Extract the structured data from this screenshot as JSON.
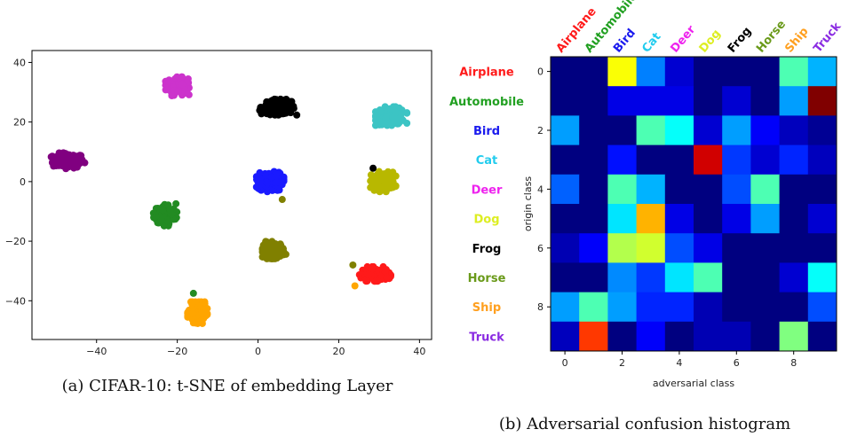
{
  "chart_data": [
    {
      "type": "scatter",
      "caption": "(a) CIFAR-10: t-SNE of embedding Layer",
      "title": "",
      "xlabel": "",
      "ylabel": "",
      "xlim": [
        -56,
        43
      ],
      "ylim": [
        -53,
        44
      ],
      "xticks": [
        -40,
        -20,
        0,
        20,
        40
      ],
      "yticks": [
        -40,
        -20,
        0,
        20,
        40
      ],
      "grid": false,
      "clusters": [
        {
          "color": "#800080",
          "center": [
            -47,
            7
          ],
          "spread": [
            3.5,
            2.2
          ]
        },
        {
          "color": "#cc33cc",
          "center": [
            -20,
            32
          ],
          "spread": [
            2.4,
            2.6
          ]
        },
        {
          "color": "#000000",
          "center": [
            5,
            25
          ],
          "spread": [
            3.8,
            2.2
          ]
        },
        {
          "color": "#3cc4c4",
          "center": [
            33,
            22
          ],
          "spread": [
            3.2,
            2.6
          ]
        },
        {
          "color": "#228b22",
          "center": [
            -23,
            -11
          ],
          "spread": [
            2.4,
            3.2
          ]
        },
        {
          "color": "#1a1aff",
          "center": [
            3,
            0
          ],
          "spread": [
            2.8,
            2.8
          ]
        },
        {
          "color": "#b8b800",
          "center": [
            31,
            0
          ],
          "spread": [
            2.6,
            2.8
          ]
        },
        {
          "color": "#808000",
          "center": [
            4,
            -23
          ],
          "spread": [
            2.4,
            2.4
          ]
        },
        {
          "color": "#ff1a1a",
          "center": [
            29,
            -31
          ],
          "spread": [
            3.2,
            2.0
          ]
        },
        {
          "color": "#ffa500",
          "center": [
            -15,
            -44
          ],
          "spread": [
            2.0,
            3.0
          ]
        }
      ],
      "outliers": [
        {
          "x": 28.5,
          "y": 4.5,
          "color": "#000000"
        },
        {
          "x": 6,
          "y": -6,
          "color": "#808000"
        },
        {
          "x": 23.5,
          "y": -28,
          "color": "#808000"
        },
        {
          "x": 24,
          "y": -35,
          "color": "#ffa500"
        },
        {
          "x": -16,
          "y": -37.5,
          "color": "#228b22"
        }
      ]
    },
    {
      "type": "heatmap",
      "caption": "(b) Adversarial confusion histogram",
      "xlabel": "adversarial class",
      "ylabel": "origin class",
      "xticks": [
        0,
        2,
        4,
        6,
        8
      ],
      "yticks": [
        0,
        2,
        4,
        6,
        8
      ],
      "classes": [
        {
          "name": "Airplane",
          "color": "#ff1a1a"
        },
        {
          "name": "Automobile",
          "color": "#22a022"
        },
        {
          "name": "Bird",
          "color": "#1a1aee"
        },
        {
          "name": "Cat",
          "color": "#22ccee"
        },
        {
          "name": "Deer",
          "color": "#ee22ee"
        },
        {
          "name": "Dog",
          "color": "#ddee22"
        },
        {
          "name": "Frog",
          "color": "#000000"
        },
        {
          "name": "Horse",
          "color": "#6a9a1a"
        },
        {
          "name": "Ship",
          "color": "#ffa020"
        },
        {
          "name": "Truck",
          "color": "#8a2be2"
        }
      ],
      "colormap": "jet",
      "matrix": [
        [
          0.0,
          0.0,
          0.62,
          0.25,
          0.08,
          0.0,
          0.0,
          0.0,
          0.45,
          0.3
        ],
        [
          0.0,
          0.0,
          0.1,
          0.1,
          0.1,
          0.0,
          0.08,
          0.0,
          0.28,
          1.0
        ],
        [
          0.28,
          0.0,
          0.0,
          0.45,
          0.38,
          0.08,
          0.28,
          0.12,
          0.06,
          0.02
        ],
        [
          0.0,
          0.0,
          0.14,
          0.0,
          0.0,
          0.92,
          0.18,
          0.08,
          0.16,
          0.06
        ],
        [
          0.22,
          0.0,
          0.45,
          0.3,
          0.0,
          0.0,
          0.2,
          0.45,
          0.0,
          0.0
        ],
        [
          0.0,
          0.0,
          0.35,
          0.7,
          0.1,
          0.0,
          0.1,
          0.28,
          0.0,
          0.08
        ],
        [
          0.05,
          0.12,
          0.55,
          0.58,
          0.2,
          0.1,
          0.0,
          0.0,
          0.0,
          0.0
        ],
        [
          0.0,
          0.0,
          0.26,
          0.18,
          0.35,
          0.45,
          0.0,
          0.0,
          0.08,
          0.38
        ],
        [
          0.28,
          0.45,
          0.28,
          0.16,
          0.16,
          0.05,
          0.0,
          0.0,
          0.0,
          0.2
        ],
        [
          0.06,
          0.82,
          0.0,
          0.12,
          0.0,
          0.05,
          0.05,
          0.0,
          0.5,
          0.0
        ]
      ]
    }
  ]
}
